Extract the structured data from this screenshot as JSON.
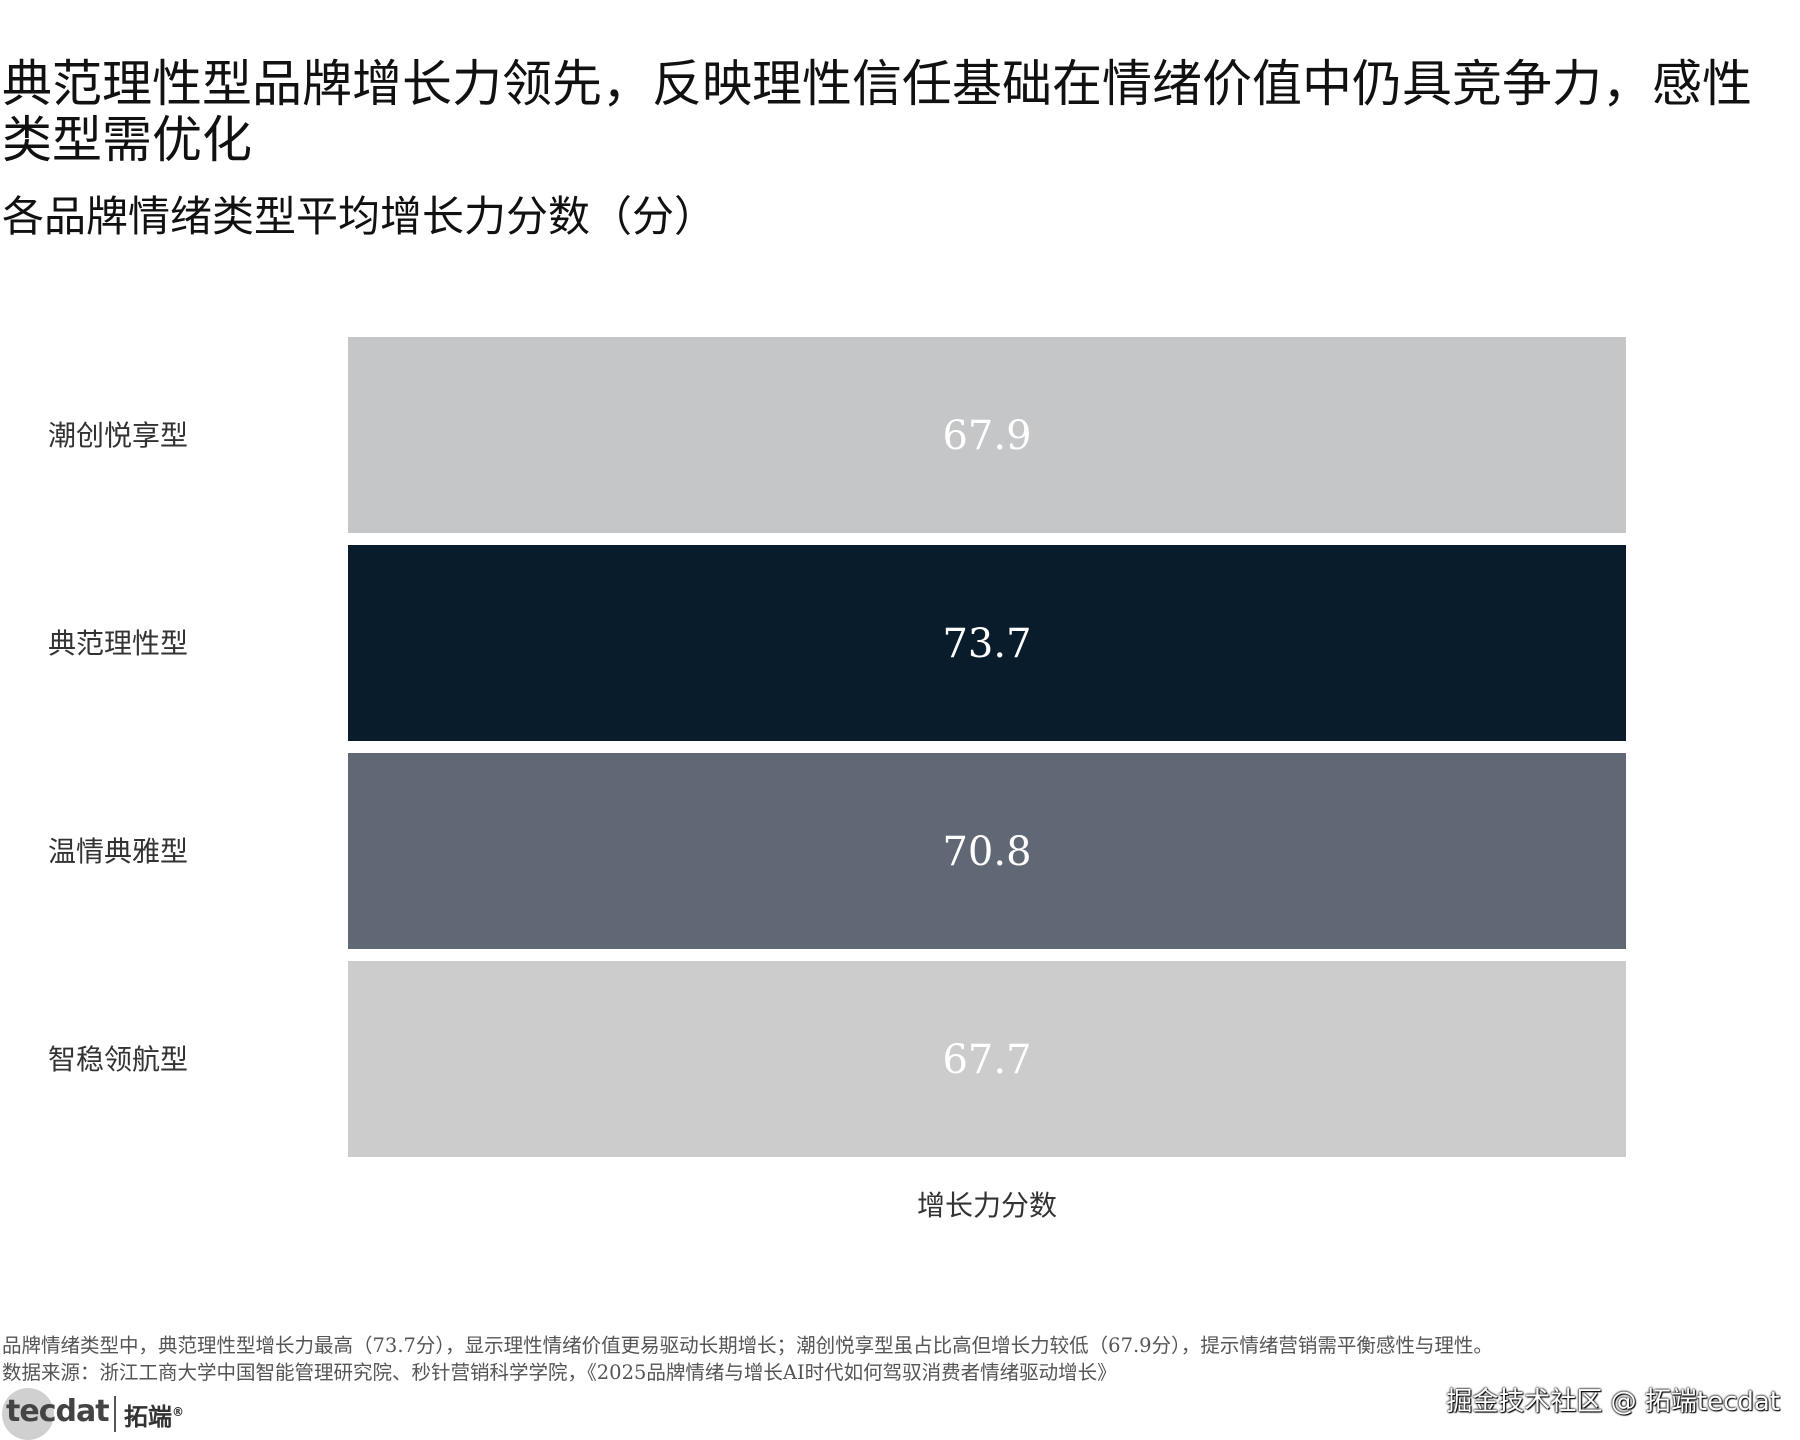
{
  "title": "典范理性型品牌增长力领先，反映理性信任基础在情绪价值中仍具竞争力，感性类型需优化",
  "subtitle": "各品牌情绪类型平均增长力分数（分）",
  "chart_data": {
    "type": "bar",
    "orientation": "horizontal",
    "categories": [
      "潮创悦享型",
      "典范理性型",
      "温情典雅型",
      "智稳领航型"
    ],
    "values": [
      67.9,
      73.7,
      70.8,
      67.7
    ],
    "value_labels": [
      "67.9",
      "73.7",
      "70.8",
      "67.7"
    ],
    "colors": [
      "#c5c6c8",
      "#081c2b",
      "#5f6874",
      "#cccccc"
    ],
    "label_colors": [
      "#ffffff",
      "#ffffff",
      "#ffffff",
      "#ffffff"
    ],
    "title": "",
    "xlabel": "增长力分数",
    "ylabel": "",
    "grid": false,
    "legend": "none"
  },
  "footnote": "品牌情绪类型中，典范理性型增长力最高（73.7分），显示理性情绪价值更易驱动长期增长；潮创悦享型虽占比高但增长力较低（67.9分），提示情绪营销需平衡感性与理性。",
  "source": "数据来源：浙江工商大学中国智能管理研究院、秒针营销科学学院，《2025品牌情绪与增长AI时代如何驾驭消费者情绪驱动增长》",
  "logo": {
    "text": "tecdat",
    "cn": "拓端",
    "reg": "®"
  },
  "watermark": "掘金技术社区 @ 拓端tecdat"
}
